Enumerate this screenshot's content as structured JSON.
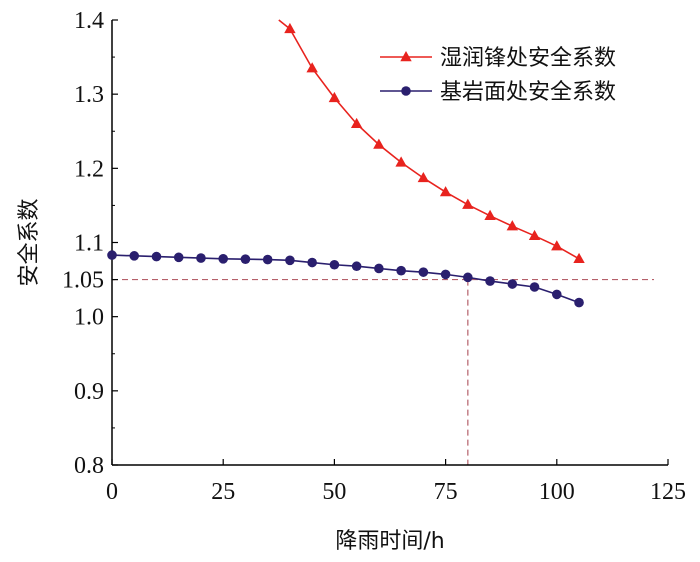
{
  "chart_data": {
    "type": "line",
    "title": "",
    "xlabel": "降雨时间/h",
    "ylabel": "安全系数",
    "xlim": [
      0,
      125
    ],
    "ylim": [
      0.8,
      1.4
    ],
    "x_ticks": [
      "0",
      "25",
      "50",
      "75",
      "100",
      "125"
    ],
    "y_ticks": [
      "0.8",
      "0.9",
      "1.0",
      "1.05",
      "1.1",
      "1.2",
      "1.3",
      "1.4"
    ],
    "y_tick_values": [
      0.8,
      0.9,
      1.0,
      1.05,
      1.1,
      1.2,
      1.3,
      1.4
    ],
    "grid": false,
    "legend_position": "top-right",
    "series": [
      {
        "name": "湿润锋处安全系数",
        "color": "#e8231e",
        "marker": "triangle",
        "x": [
          40,
          45,
          50,
          55,
          60,
          65,
          70,
          75,
          80,
          85,
          90,
          95,
          100,
          105
        ],
        "y": [
          1.388,
          1.335,
          1.295,
          1.26,
          1.232,
          1.208,
          1.187,
          1.168,
          1.151,
          1.136,
          1.122,
          1.109,
          1.095,
          1.078
        ]
      },
      {
        "name": "基岩面处安全系数",
        "color": "#2a1f6e",
        "marker": "circle",
        "x": [
          0,
          5,
          10,
          15,
          20,
          25,
          30,
          35,
          40,
          45,
          50,
          55,
          60,
          65,
          70,
          75,
          80,
          85,
          90,
          95,
          100,
          105
        ],
        "y": [
          1.083,
          1.082,
          1.081,
          1.08,
          1.079,
          1.078,
          1.0775,
          1.077,
          1.076,
          1.073,
          1.07,
          1.068,
          1.065,
          1.062,
          1.06,
          1.057,
          1.053,
          1.048,
          1.044,
          1.04,
          1.03,
          1.019
        ]
      }
    ],
    "reference_lines": [
      {
        "axis": "y",
        "value": 1.05,
        "style": "dashed",
        "color": "#b5606a"
      },
      {
        "axis": "x",
        "value": 80,
        "y_to": 1.05,
        "style": "dashed",
        "color": "#b5606a"
      }
    ]
  }
}
